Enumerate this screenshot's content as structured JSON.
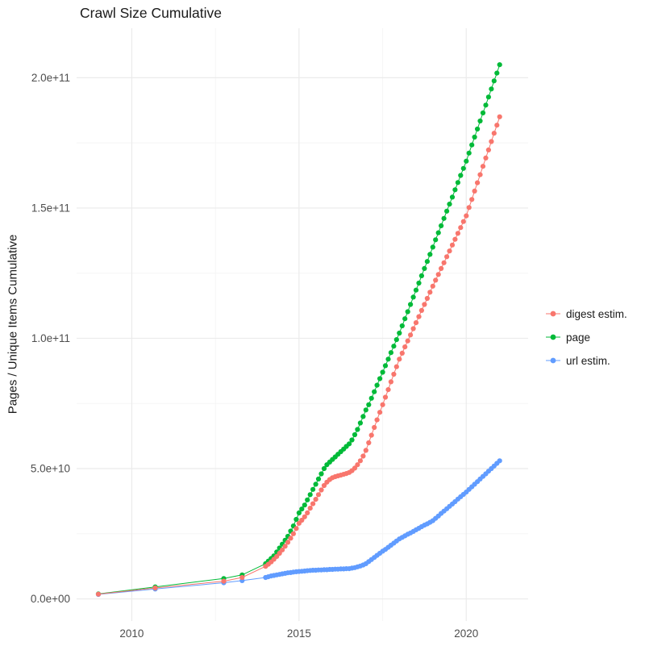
{
  "chart_data": {
    "type": "scatter",
    "title": "Crawl Size Cumulative",
    "xlabel": "",
    "ylabel": "Pages / Unique Items Cumulative",
    "value_unit": "items, values stored in billions (1e9)",
    "xlim": [
      2008.35,
      2021.85
    ],
    "ylim_billions": [
      -8.5,
      219
    ],
    "grid": "on",
    "x_ticks": [
      {
        "v": 2010,
        "label": "2010"
      },
      {
        "v": 2015,
        "label": "2015"
      },
      {
        "v": 2020,
        "label": "2020"
      }
    ],
    "x_minor": [
      2012.5,
      2017.5
    ],
    "y_ticks": [
      {
        "v": 0,
        "label": "0.0e+00"
      },
      {
        "v": 50,
        "label": "5.0e+10"
      },
      {
        "v": 100,
        "label": "1.0e+11"
      },
      {
        "v": 150,
        "label": "1.5e+11"
      },
      {
        "v": 200,
        "label": "2.0e+11"
      }
    ],
    "y_minor": [
      25,
      75,
      125,
      175
    ],
    "colors": {
      "digest": "#F8766D",
      "page": "#00BA38",
      "url": "#619CFF",
      "grid_major": "#EBEBEB",
      "grid_minor": "#F5F5F5",
      "tick_label": "#4d4d4d",
      "title": "#1a1a1a"
    },
    "legend": {
      "position": "right",
      "entries": [
        {
          "label": "digest estim.",
          "color": "#F8766D"
        },
        {
          "label": "page",
          "color": "#00BA38"
        },
        {
          "label": "url estim.",
          "color": "#619CFF"
        }
      ]
    },
    "series": [
      {
        "name": "page",
        "color": "#00BA38",
        "early_points": [
          [
            2009.0,
            1.9
          ],
          [
            2010.7,
            4.6
          ],
          [
            2012.75,
            7.8
          ],
          [
            2013.3,
            9.2
          ]
        ],
        "monthly_start": 2014.0,
        "monthly_step_years": 0.083333,
        "values_billions": [
          13.5,
          14.5,
          15.5,
          16.5,
          18,
          19.5,
          21,
          22.5,
          24,
          26,
          28,
          30.5,
          33,
          34.5,
          36,
          38,
          40,
          42,
          44,
          46,
          48,
          50,
          51.5,
          52.5,
          53.5,
          54.5,
          55.5,
          56.5,
          57.5,
          58.5,
          59.5,
          61,
          63,
          65,
          67.5,
          70,
          72.5,
          74.5,
          77,
          79.5,
          82,
          84.5,
          87,
          89.5,
          92,
          94.5,
          97,
          99.5,
          102,
          104.8,
          107.5,
          110.2,
          113,
          115.8,
          118.5,
          121.2,
          124,
          126.8,
          129.5,
          132.2,
          135,
          137.8,
          140.5,
          143.2,
          146,
          148.8,
          151.5,
          154.2,
          157,
          159.8,
          162.5,
          165.2,
          168,
          171.1,
          174.2,
          177.2,
          180.3,
          183.4,
          186.5,
          189.5,
          192.6,
          195.7,
          198.8,
          201.8,
          205
        ]
      },
      {
        "name": "url estim.",
        "color": "#619CFF",
        "early_points": [
          [
            2009.0,
            1.7
          ],
          [
            2010.7,
            3.8
          ],
          [
            2012.75,
            6.2
          ],
          [
            2013.3,
            7.0
          ]
        ],
        "monthly_start": 2014.0,
        "monthly_step_years": 0.083333,
        "values_billions": [
          8.2,
          8.5,
          8.8,
          9,
          9.2,
          9.4,
          9.6,
          9.8,
          10,
          10.1,
          10.3,
          10.4,
          10.5,
          10.6,
          10.7,
          10.8,
          10.9,
          11,
          11,
          11.1,
          11.1,
          11.2,
          11.2,
          11.3,
          11.3,
          11.4,
          11.4,
          11.5,
          11.5,
          11.6,
          11.6,
          11.8,
          12,
          12.3,
          12.6,
          13,
          13.5,
          14.3,
          15.1,
          15.9,
          16.7,
          17.5,
          18.3,
          19,
          19.8,
          20.6,
          21.4,
          22.2,
          23,
          23.6,
          24.2,
          24.8,
          25.3,
          25.9,
          26.5,
          27.1,
          27.7,
          28.3,
          28.8,
          29.4,
          30,
          30.9,
          31.8,
          32.8,
          33.7,
          34.6,
          35.5,
          36.4,
          37.3,
          38.3,
          39.2,
          40.1,
          41,
          42,
          43,
          44,
          45,
          46,
          47,
          48,
          49,
          50,
          51,
          52,
          53
        ]
      },
      {
        "name": "digest estim.",
        "color": "#F8766D",
        "early_points": [
          [
            2009.0,
            1.8
          ],
          [
            2010.7,
            4.2
          ],
          [
            2012.75,
            6.8
          ],
          [
            2013.3,
            8.2
          ]
        ],
        "monthly_start": 2014.0,
        "monthly_step_years": 0.083333,
        "values_billions": [
          12.5,
          13.3,
          14.2,
          15.2,
          16.3,
          17.5,
          18.8,
          20.2,
          21.7,
          23.3,
          25,
          27,
          29,
          30.2,
          31.5,
          33,
          34.8,
          36.5,
          38.2,
          40,
          41.8,
          43.5,
          44.8,
          45.8,
          46.5,
          46.9,
          47.2,
          47.5,
          47.8,
          48.1,
          48.5,
          49.2,
          50.2,
          51.5,
          53,
          54.8,
          57,
          59.9,
          62.8,
          65.8,
          68.7,
          71.6,
          74.5,
          77.4,
          80.3,
          83.3,
          86.2,
          89.1,
          92,
          94.3,
          96.7,
          99,
          101.3,
          103.7,
          106,
          108.3,
          110.7,
          113,
          115.3,
          117.7,
          120,
          122.3,
          124.5,
          126.8,
          129,
          131.3,
          133.5,
          135.8,
          138,
          140.3,
          142.5,
          144.8,
          147,
          150.2,
          153.3,
          156.5,
          159.7,
          162.8,
          166,
          169.2,
          172.3,
          175.5,
          178.7,
          181.8,
          185
        ]
      }
    ]
  }
}
